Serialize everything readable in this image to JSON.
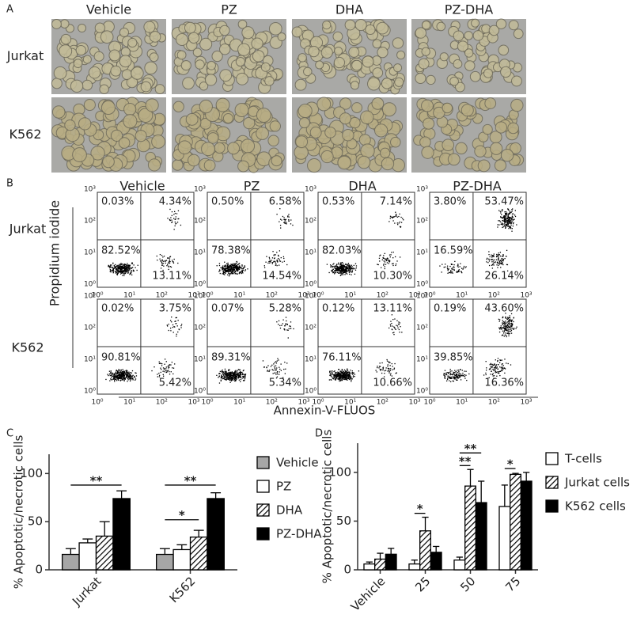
{
  "panel_a": {
    "label": "A",
    "columns": [
      "Vehicle",
      "PZ",
      "DHA",
      "PZ-DHA"
    ],
    "rows": [
      "Jurkat",
      "K562"
    ]
  },
  "panel_b": {
    "label": "B",
    "columns": [
      "Vehicle",
      "PZ",
      "DHA",
      "PZ-DHA"
    ],
    "rows": [
      "Jurkat",
      "K562"
    ],
    "y_label": "Propidium iodide",
    "x_label": "Annexin-V-FLUOS",
    "ticks": [
      "10⁰",
      "10¹",
      "10²",
      "10³"
    ],
    "quadrants": [
      [
        [
          "0.03%",
          "4.34%",
          "82.52%",
          "13.11%"
        ],
        [
          "0.50%",
          "6.58%",
          "78.38%",
          "14.54%"
        ],
        [
          "0.53%",
          "7.14%",
          "82.03%",
          "10.30%"
        ],
        [
          "3.80%",
          "53.47%",
          "16.59%",
          "26.14%"
        ]
      ],
      [
        [
          "0.02%",
          "3.75%",
          "90.81%",
          "5.42%"
        ],
        [
          "0.07%",
          "5.28%",
          "89.31%",
          "5.34%"
        ],
        [
          "0.12%",
          "13.11%",
          "76.11%",
          "10.66%"
        ],
        [
          "0.19%",
          "43.60%",
          "39.85%",
          "16.36%"
        ]
      ]
    ]
  },
  "chart_data": [
    {
      "type": "bar",
      "label": "C",
      "y_label": "% Apoptotic/necrotic cells",
      "categories": [
        "Jurkat",
        "K562"
      ],
      "series": [
        {
          "name": "Vehicle",
          "color": "#a6a6a6",
          "values": [
            16,
            16
          ],
          "errors": [
            6,
            6
          ]
        },
        {
          "name": "PZ",
          "color": "#ffffff",
          "values": [
            28,
            21
          ],
          "errors": [
            4,
            5
          ]
        },
        {
          "name": "DHA",
          "color": "#ffffff",
          "pattern": "hatch",
          "values": [
            35,
            34
          ],
          "errors": [
            15,
            7
          ]
        },
        {
          "name": "PZ-DHA",
          "color": "#000000",
          "values": [
            74,
            74
          ],
          "errors": [
            8,
            6
          ]
        }
      ],
      "annotations": [
        {
          "text": "**",
          "category": 0,
          "from": 0,
          "to": 3,
          "y": 88
        },
        {
          "text": "**",
          "category": 1,
          "from": 0,
          "to": 3,
          "y": 88
        },
        {
          "text": "*",
          "category": 1,
          "from": 0,
          "to": 2,
          "y": 52
        }
      ],
      "ylim": [
        0,
        120
      ],
      "yticks": [
        0,
        50,
        100
      ]
    },
    {
      "type": "bar",
      "label": "D",
      "y_label": "% Apoptotic/necrotic cells",
      "categories": [
        "Vehicle",
        "25",
        "50",
        "75"
      ],
      "series": [
        {
          "name": "T-cells",
          "color": "#ffffff",
          "values": [
            6,
            6,
            10,
            65
          ],
          "errors": [
            2,
            4,
            3,
            22
          ]
        },
        {
          "name": "Jurkat cells",
          "color": "#ffffff",
          "pattern": "hatch",
          "values": [
            11,
            40,
            86,
            98
          ],
          "errors": [
            6,
            14,
            17,
            1
          ]
        },
        {
          "name": "K562 cells",
          "color": "#000000",
          "values": [
            16,
            18,
            69,
            91
          ],
          "errors": [
            6,
            6,
            22,
            9
          ]
        }
      ],
      "annotations": [
        {
          "text": "*",
          "category": 1,
          "from": 0,
          "to": 1,
          "y": 58
        },
        {
          "text": "**",
          "category": 2,
          "from": 0,
          "to": 1,
          "y": 107
        },
        {
          "text": "**",
          "category": 2,
          "from": 0,
          "to": 2,
          "y": 120
        },
        {
          "text": "*",
          "category": 3,
          "from": 0,
          "to": 1,
          "y": 104
        }
      ],
      "ylim": [
        0,
        130
      ],
      "yticks": [
        0,
        50,
        100
      ]
    }
  ]
}
